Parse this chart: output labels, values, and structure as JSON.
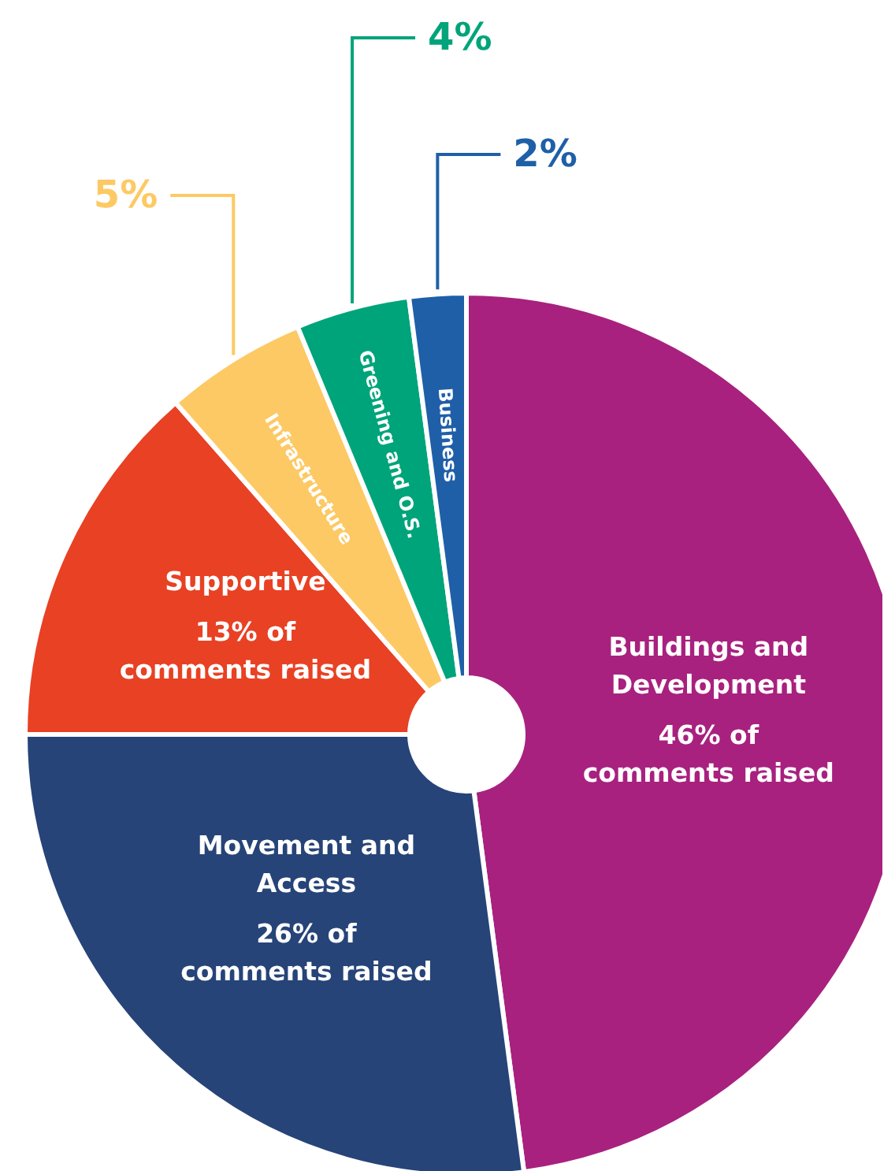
{
  "chart_data": {
    "type": "donut",
    "categories": [
      "Buildings and\nDevelopment",
      "Movement and\nAccess",
      "Supportive",
      "Infrastructure",
      "Greening and O.S.",
      "Business"
    ],
    "values": [
      46,
      26,
      13,
      5,
      4,
      2
    ],
    "colors": [
      "#a8217f",
      "#264478",
      "#e84124",
      "#fdc964",
      "#00a47a",
      "#1f5fa8"
    ],
    "value_labels": [
      "46% of\ncomments raised",
      "26% of\ncomments raised",
      "13% of\ncomments raised",
      "5%",
      "4%",
      "2%"
    ]
  }
}
